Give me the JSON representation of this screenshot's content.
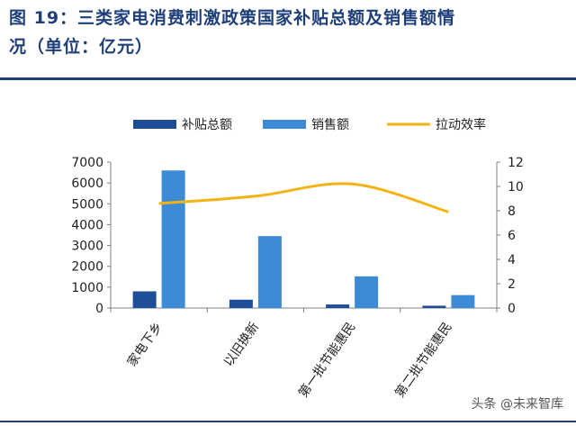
{
  "figure": {
    "title_line1": "图 19：三类家电消费刺激政策国家补贴总额及销售额情",
    "title_line2": "况（单位：亿元）"
  },
  "watermark": "头条 @未来智库",
  "colors": {
    "subsidy": "#1f4e99",
    "sales": "#3d8bd4",
    "efficiency": "#f2b315",
    "axis": "#808080",
    "rule": "#1f3f7a"
  },
  "chart_data": {
    "type": "bar",
    "categories": [
      "家电下乡",
      "以旧换新",
      "第一批节能惠民",
      "第二批节能惠民"
    ],
    "series": [
      {
        "name": "补贴总额",
        "type": "bar",
        "axis": "left",
        "values": [
          800,
          400,
          170,
          110
        ]
      },
      {
        "name": "销售额",
        "type": "bar",
        "axis": "left",
        "values": [
          6600,
          3450,
          1520,
          620
        ]
      },
      {
        "name": "拉动效率",
        "type": "line",
        "axis": "right",
        "smooth": true,
        "values": [
          8.6,
          9.2,
          10.2,
          7.9
        ]
      }
    ],
    "y_left": {
      "ylim": [
        0,
        7000
      ],
      "ticks": [
        0,
        1000,
        2000,
        3000,
        4000,
        5000,
        6000,
        7000
      ]
    },
    "y_right": {
      "ylim": [
        0,
        12
      ],
      "ticks": [
        0,
        2,
        4,
        6,
        8,
        10,
        12
      ]
    },
    "legend": {
      "position": "top",
      "items": [
        "补贴总额",
        "销售额",
        "拉动效率"
      ]
    },
    "grid": false,
    "xlabel_rotation": "rotated"
  }
}
